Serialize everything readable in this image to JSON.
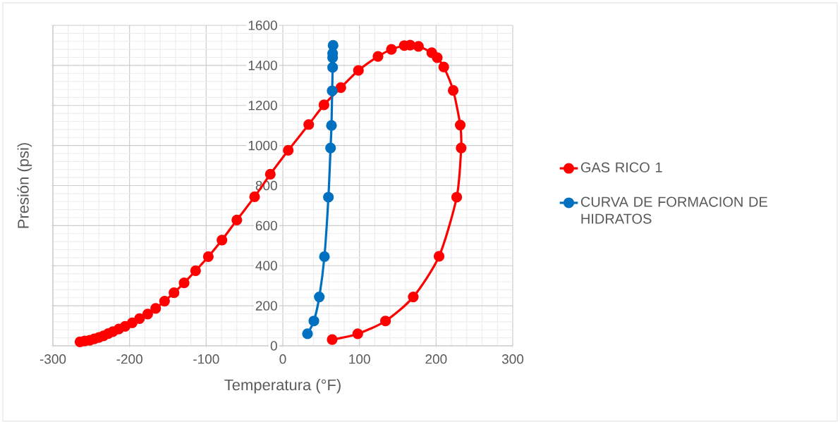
{
  "chart_data": {
    "type": "line",
    "xlabel": "Temperatura (°F)",
    "ylabel": "Presión (psi)",
    "xlim": [
      -300,
      300
    ],
    "ylim": [
      0,
      1600
    ],
    "xticks": [
      -300,
      -200,
      -100,
      0,
      100,
      200,
      300
    ],
    "yticks": [
      0,
      200,
      400,
      600,
      800,
      1000,
      1200,
      1400,
      1600
    ],
    "grid": true,
    "legend": "right",
    "marker": "circle",
    "line_style": "solid",
    "series": [
      {
        "name": "GAS RICO 1",
        "color": "#ff0000",
        "x": [
          -264.7,
          -258.5,
          -252,
          -246,
          -240,
          -234,
          -227.8,
          -221.7,
          -214,
          -205.8,
          -196.5,
          -187,
          -176.3,
          -165.9,
          -154.3,
          -142,
          -128.8,
          -113.8,
          -97.2,
          -79.4,
          -60,
          -36.8,
          -16.3,
          7.1,
          33.8,
          53.7,
          75.7,
          98.7,
          124.2,
          141.7,
          158.5,
          166.2,
          177,
          194.4,
          201.5,
          210,
          222.3,
          231.5,
          232.7,
          226.9,
          203.9,
          170.2,
          134,
          97.8,
          64.4
        ],
        "values": [
          20,
          24,
          28,
          35,
          42,
          50,
          61,
          71,
          84,
          97,
          115,
          136,
          159,
          187,
          223,
          265,
          314,
          375,
          445,
          528,
          628,
          744,
          857,
          976,
          1105,
          1203,
          1289,
          1375,
          1445,
          1480,
          1499,
          1501,
          1495,
          1463,
          1439,
          1392,
          1275,
          1102,
          988,
          742,
          447,
          244,
          124,
          60,
          31
        ]
      },
      {
        "name": "CURVA DE FORMACION DE HIDRATOS",
        "color": "#0070c0",
        "x": [
          32.2,
          40.5,
          47.6,
          54.3,
          59.5,
          62.3,
          63.5,
          64.4,
          65,
          65,
          65,
          65.6
        ],
        "values": [
          60,
          124,
          244,
          445,
          742,
          988,
          1100,
          1273,
          1390,
          1439,
          1460,
          1500
        ]
      }
    ]
  }
}
